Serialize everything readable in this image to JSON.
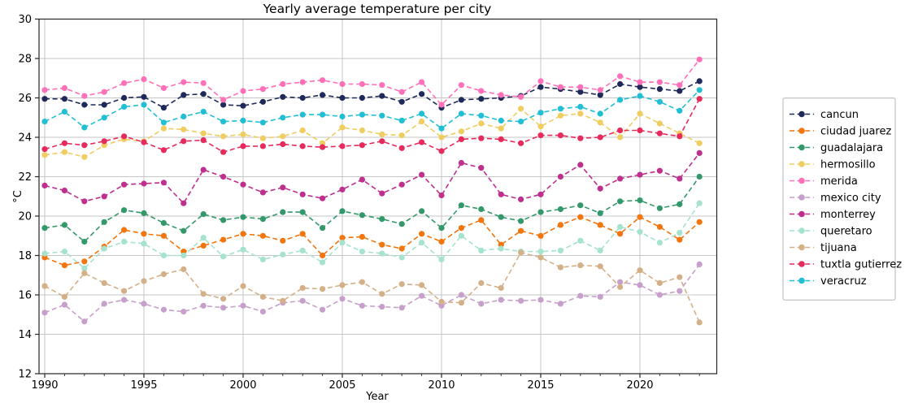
{
  "title": "Yearly average temperature per city",
  "axes": {
    "xlabel": "Year",
    "ylabel": "°C"
  },
  "chart_data": {
    "type": "line",
    "title": "Yearly average temperature per city",
    "xlabel": "Year",
    "ylabel": "°C",
    "line_style": "dashed",
    "marker": "o",
    "grid": true,
    "legend_position": "outside-center-right",
    "xlim": [
      1989.7,
      2023.85
    ],
    "ylim": [
      12,
      30
    ],
    "x_ticks": [
      1990,
      1995,
      2000,
      2005,
      2010,
      2015,
      2020
    ],
    "y_ticks": [
      12,
      14,
      16,
      18,
      20,
      22,
      24,
      26,
      28,
      30
    ],
    "x": [
      1990,
      1991,
      1992,
      1993,
      1994,
      1995,
      1996,
      1997,
      1998,
      1999,
      2000,
      2001,
      2002,
      2003,
      2004,
      2005,
      2006,
      2007,
      2008,
      2009,
      2010,
      2011,
      2012,
      2013,
      2014,
      2015,
      2016,
      2017,
      2018,
      2019,
      2020,
      2021,
      2022,
      2023
    ],
    "series": [
      {
        "name": "cancun",
        "color": "#1f2a5a",
        "values": [
          25.95,
          25.95,
          25.65,
          25.65,
          26.0,
          26.05,
          25.5,
          26.15,
          26.2,
          25.65,
          25.6,
          25.8,
          26.05,
          26.0,
          26.15,
          26.0,
          26.0,
          26.1,
          25.8,
          26.2,
          25.5,
          25.9,
          25.95,
          26.0,
          26.1,
          26.55,
          26.45,
          26.3,
          26.15,
          26.7,
          26.55,
          26.45,
          26.35,
          26.85
        ]
      },
      {
        "name": "ciudad juarez",
        "color": "#f2750e",
        "values": [
          17.9,
          17.5,
          17.7,
          18.45,
          19.3,
          19.1,
          19.0,
          18.2,
          18.5,
          18.8,
          19.1,
          19.0,
          18.75,
          19.1,
          18.0,
          18.9,
          18.95,
          18.55,
          18.35,
          19.1,
          18.7,
          19.4,
          19.8,
          18.55,
          19.25,
          19.0,
          19.55,
          19.95,
          19.55,
          19.1,
          19.95,
          19.45,
          18.8,
          19.7
        ]
      },
      {
        "name": "guadalajara",
        "color": "#33996b",
        "values": [
          19.4,
          19.55,
          18.7,
          19.7,
          20.3,
          20.15,
          19.65,
          19.25,
          20.1,
          19.8,
          19.95,
          19.85,
          20.2,
          20.2,
          19.4,
          20.25,
          20.05,
          19.85,
          19.6,
          20.25,
          19.4,
          20.55,
          20.35,
          19.95,
          19.75,
          20.2,
          20.35,
          20.55,
          20.15,
          20.75,
          20.8,
          20.4,
          20.6,
          22.0
        ]
      },
      {
        "name": "hermosillo",
        "color": "#f0cd60",
        "values": [
          23.1,
          23.25,
          23.0,
          23.6,
          23.9,
          23.8,
          24.45,
          24.4,
          24.2,
          24.05,
          24.15,
          23.95,
          24.05,
          24.35,
          23.7,
          24.5,
          24.35,
          24.15,
          24.1,
          24.8,
          24.0,
          24.3,
          24.7,
          24.45,
          25.45,
          24.55,
          25.1,
          25.2,
          24.75,
          24.0,
          25.2,
          24.7,
          24.2,
          23.7
        ]
      },
      {
        "name": "merida",
        "color": "#ff70b8",
        "values": [
          26.4,
          26.5,
          26.1,
          26.3,
          26.75,
          26.95,
          26.5,
          26.8,
          26.75,
          25.9,
          26.35,
          26.45,
          26.7,
          26.8,
          26.9,
          26.7,
          26.7,
          26.65,
          26.3,
          26.8,
          25.65,
          26.65,
          26.35,
          26.15,
          26.05,
          26.85,
          26.55,
          26.55,
          26.4,
          27.1,
          26.8,
          26.8,
          26.65,
          27.95
        ]
      },
      {
        "name": "mexico city",
        "color": "#c79fcb",
        "values": [
          15.1,
          15.5,
          14.65,
          15.55,
          15.75,
          15.55,
          15.25,
          15.15,
          15.45,
          15.35,
          15.45,
          15.15,
          15.6,
          15.7,
          15.25,
          15.8,
          15.45,
          15.4,
          15.35,
          15.95,
          15.45,
          16.0,
          15.55,
          15.75,
          15.7,
          15.75,
          15.55,
          15.95,
          15.9,
          16.65,
          16.5,
          16.0,
          16.2,
          17.55
        ]
      },
      {
        "name": "monterrey",
        "color": "#bf2f8d",
        "values": [
          21.55,
          21.3,
          20.75,
          21.0,
          21.6,
          21.65,
          21.7,
          20.65,
          22.35,
          22.0,
          21.6,
          21.2,
          21.45,
          21.1,
          20.9,
          21.35,
          21.85,
          21.15,
          21.6,
          22.1,
          21.05,
          22.7,
          22.45,
          21.1,
          20.85,
          21.1,
          22.0,
          22.6,
          21.4,
          21.9,
          22.1,
          22.3,
          21.9,
          23.2
        ]
      },
      {
        "name": "queretaro",
        "color": "#a5e3cd",
        "values": [
          18.1,
          18.2,
          17.35,
          18.35,
          18.7,
          18.6,
          18.0,
          18.0,
          18.9,
          17.95,
          18.3,
          17.8,
          18.05,
          18.25,
          17.65,
          18.65,
          18.2,
          18.1,
          17.9,
          18.65,
          17.8,
          19.0,
          18.25,
          18.35,
          18.2,
          18.2,
          18.25,
          18.75,
          18.25,
          19.45,
          19.2,
          18.65,
          19.15,
          20.65
        ]
      },
      {
        "name": "tijuana",
        "color": "#d4b088",
        "values": [
          16.45,
          15.9,
          17.1,
          16.6,
          16.2,
          16.7,
          17.05,
          17.3,
          16.05,
          15.8,
          16.45,
          15.9,
          15.7,
          16.35,
          16.3,
          16.5,
          16.65,
          16.05,
          16.55,
          16.5,
          15.65,
          15.6,
          16.6,
          16.35,
          18.15,
          17.9,
          17.4,
          17.5,
          17.45,
          16.4,
          17.25,
          16.6,
          16.9,
          14.6
        ]
      },
      {
        "name": "tuxtla gutierrez",
        "color": "#e62a5c",
        "values": [
          23.4,
          23.7,
          23.6,
          23.8,
          24.05,
          23.75,
          23.35,
          23.8,
          23.85,
          23.25,
          23.55,
          23.55,
          23.65,
          23.55,
          23.5,
          23.55,
          23.6,
          23.8,
          23.45,
          23.75,
          23.3,
          23.9,
          23.95,
          23.9,
          23.7,
          24.1,
          24.1,
          23.95,
          24.0,
          24.35,
          24.35,
          24.2,
          24.05,
          25.95
        ]
      },
      {
        "name": "veracruz",
        "color": "#22bfd4",
        "values": [
          24.8,
          25.3,
          24.5,
          25.0,
          25.55,
          25.65,
          24.75,
          25.05,
          25.3,
          24.8,
          24.85,
          24.75,
          25.0,
          25.15,
          25.15,
          25.05,
          25.15,
          25.1,
          24.85,
          25.2,
          24.45,
          25.2,
          25.1,
          24.85,
          24.8,
          25.25,
          25.45,
          25.55,
          25.2,
          25.9,
          26.1,
          25.8,
          25.35,
          26.4
        ]
      }
    ]
  },
  "style": {
    "grid_color": "#c6c6c6",
    "spine_color": "#262626",
    "background": "#ffffff",
    "legend_border": "#b4b4b4"
  }
}
